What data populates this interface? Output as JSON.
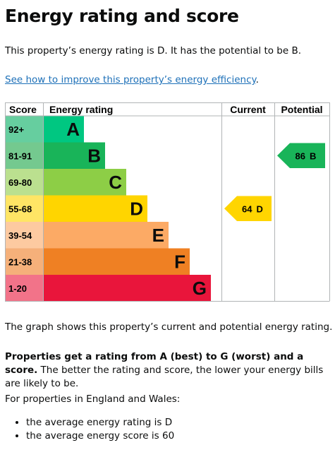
{
  "heading": "Energy rating and score",
  "intro": "This property’s energy rating is D. It has the potential to be B.",
  "link": {
    "text": "See how to improve this property’s energy efficiency",
    "after": "."
  },
  "graph": {
    "headers": [
      "Score",
      "Energy rating",
      "Current",
      "Potential"
    ],
    "bands": [
      {
        "score": "92+",
        "letter": "A",
        "color": "#00c781",
        "score_color": "#66ce9f"
      },
      {
        "score": "81-91",
        "letter": "B",
        "color": "#19b459",
        "score_color": "#74c98f"
      },
      {
        "score": "69-80",
        "letter": "C",
        "color": "#8dce46",
        "score_color": "#bbe08f"
      },
      {
        "score": "55-68",
        "letter": "D",
        "color": "#ffd500",
        "score_color": "#ffe565"
      },
      {
        "score": "39-54",
        "letter": "E",
        "color": "#fcaa65",
        "score_color": "#fdcaa1"
      },
      {
        "score": "21-38",
        "letter": "F",
        "color": "#ef8023",
        "score_color": "#f5b07a"
      },
      {
        "score": "1-20",
        "letter": "G",
        "color": "#e9153b",
        "score_color": "#f27389"
      }
    ],
    "current": {
      "score": 64,
      "letter": "D"
    },
    "potential": {
      "score": 86,
      "letter": "B"
    }
  },
  "graph_note": "The graph shows this property’s current and potential energy rating.",
  "rating_para": {
    "bold": "Properties get a rating from A (best) to G (worst) and a score.",
    "rest": " The better the rating and score, the lower your energy bills are likely to be."
  },
  "averages": {
    "intro": "For properties in England and Wales:",
    "items": [
      "the average energy rating is D",
      "the average energy score is 60"
    ]
  }
}
